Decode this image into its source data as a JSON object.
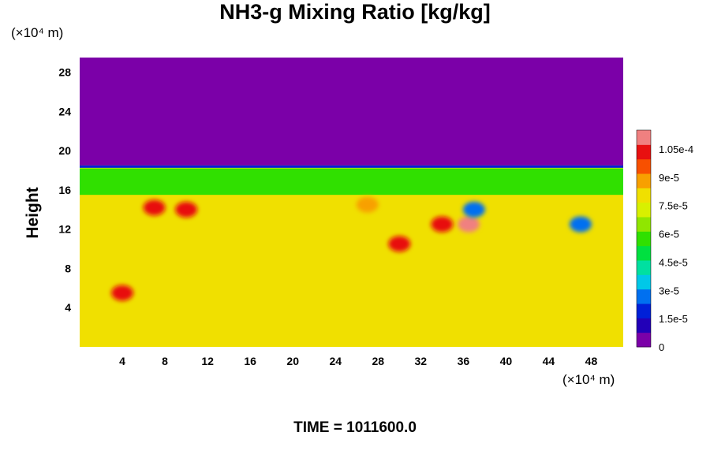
{
  "chart_data": {
    "type": "heatmap",
    "title": "NH3-g Mixing Ratio [kg/kg]",
    "ylabel": "Height",
    "y_units": "(×10⁴ m)",
    "x_units": "(×10⁴ m)",
    "footer": "TIME = 1011600.0",
    "x_ticks": [
      "4",
      "8",
      "12",
      "16",
      "20",
      "24",
      "28",
      "32",
      "36",
      "40",
      "44",
      "48"
    ],
    "y_ticks": [
      "4",
      "8",
      "12",
      "16",
      "20",
      "24",
      "28"
    ],
    "xlim": [
      0,
      51
    ],
    "ylim": [
      0,
      29.5
    ],
    "colorbar": {
      "ticks": [
        "0",
        "1.5e-5",
        "3e-5",
        "4.5e-5",
        "6e-5",
        "7.5e-5",
        "9e-5",
        "1.05e-4"
      ],
      "range": [
        0,
        0.000115
      ],
      "colors": [
        "#7b00a8",
        "#2200b8",
        "#0020d8",
        "#0070f0",
        "#00c8e8",
        "#00e0a0",
        "#00e040",
        "#30e000",
        "#90e600",
        "#d8f000",
        "#f0e000",
        "#f8a000",
        "#f85000",
        "#e81010",
        "#f08080"
      ]
    },
    "background_value": 8e-05,
    "upper_value": 0.0,
    "tropopause_height": 18.5,
    "layer": {
      "bottom": 15.5,
      "top": 18.2,
      "value": 6e-05
    },
    "features": [
      {
        "x": 4,
        "y": 5.5,
        "value": 0.0001
      },
      {
        "x": 7,
        "y": 14.2,
        "value": 0.0001
      },
      {
        "x": 10,
        "y": 14.0,
        "value": 0.0001
      },
      {
        "x": 27,
        "y": 14.5,
        "value": 9e-05
      },
      {
        "x": 30,
        "y": 10.5,
        "value": 0.0001
      },
      {
        "x": 34,
        "y": 12.5,
        "value": 0.0001
      },
      {
        "x": 36.5,
        "y": 12.5,
        "value": 0.00011
      },
      {
        "x": 37,
        "y": 14.0,
        "value": 3e-05
      },
      {
        "x": 47,
        "y": 12.5,
        "value": 3e-05
      }
    ]
  }
}
